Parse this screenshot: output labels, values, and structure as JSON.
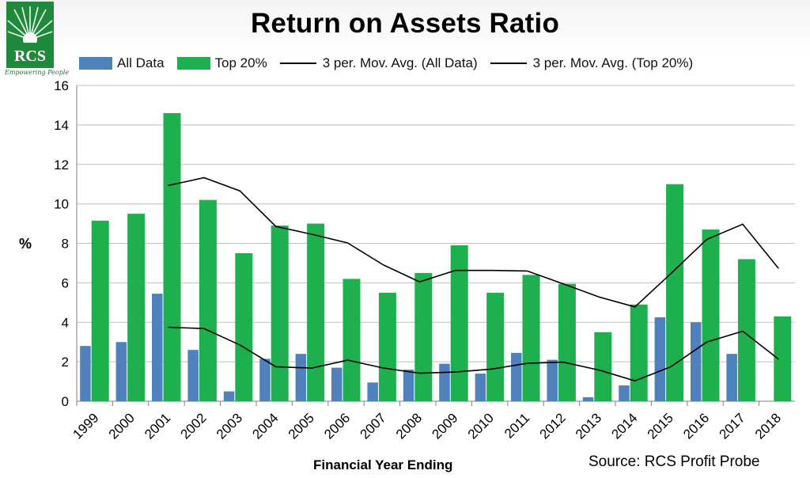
{
  "logo": {
    "text": "RCS",
    "tagline": "Empowering People"
  },
  "source": "Source: RCS Profit Probe",
  "colors": {
    "all_data": "#4f81bd",
    "top20": "#1eb04f",
    "avg_line": "#000000",
    "grid": "#bfbfbf"
  },
  "chart_data": {
    "type": "bar",
    "title": "Return on Assets Ratio",
    "xlabel": "Financial Year Ending",
    "ylabel": "%",
    "ylim": [
      0,
      16
    ],
    "yticks": [
      0,
      2,
      4,
      6,
      8,
      10,
      12,
      14,
      16
    ],
    "grid": true,
    "legend_position": "top",
    "categories": [
      "1999",
      "2000",
      "2001",
      "2002",
      "2003",
      "2004",
      "2005",
      "2006",
      "2007",
      "2008",
      "2009",
      "2010",
      "2011",
      "2012",
      "2013",
      "2014",
      "2015",
      "2016",
      "2017",
      "2018"
    ],
    "series": [
      {
        "name": "All Data",
        "kind": "bar",
        "values": [
          2.8,
          3.0,
          5.45,
          2.6,
          0.5,
          2.15,
          2.4,
          1.7,
          0.95,
          1.6,
          1.9,
          1.4,
          2.45,
          2.1,
          0.2,
          0.8,
          4.25,
          4.0,
          2.4,
          null
        ]
      },
      {
        "name": "Top 20%",
        "kind": "bar",
        "values": [
          9.15,
          9.5,
          14.6,
          10.2,
          7.5,
          8.9,
          9.0,
          6.2,
          5.5,
          6.5,
          7.9,
          5.5,
          6.4,
          5.95,
          3.5,
          4.9,
          11.0,
          8.7,
          7.2,
          4.3
        ]
      },
      {
        "name": "3 per. Mov. Avg. (All Data)",
        "kind": "line",
        "values": [
          null,
          null,
          3.75,
          3.68,
          2.85,
          1.75,
          1.68,
          2.08,
          1.68,
          1.42,
          1.48,
          1.63,
          1.92,
          1.98,
          1.58,
          1.03,
          1.75,
          3.0,
          3.55,
          2.13
        ]
      },
      {
        "name": "3 per. Mov. Avg. (Top 20%)",
        "kind": "line",
        "values": [
          null,
          null,
          10.93,
          11.33,
          10.66,
          8.86,
          8.46,
          8.02,
          6.9,
          6.05,
          6.63,
          6.63,
          6.6,
          5.95,
          5.28,
          4.78,
          6.47,
          8.2,
          8.97,
          6.73
        ]
      }
    ]
  }
}
